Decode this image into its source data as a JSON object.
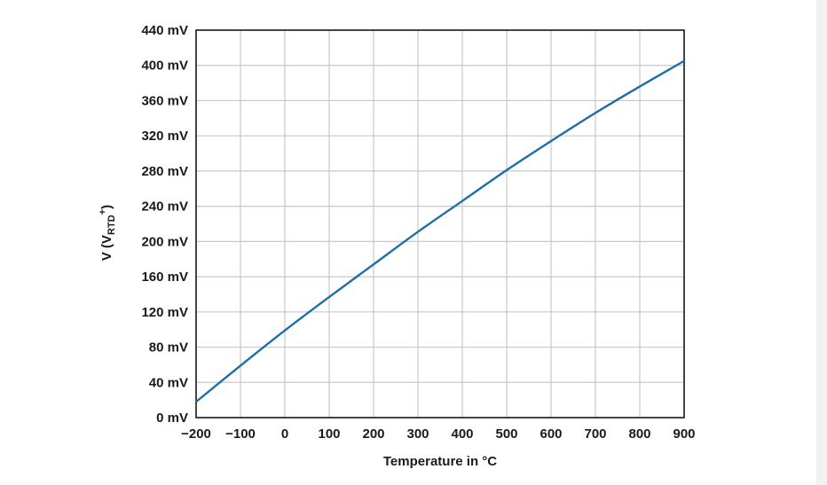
{
  "chart_data": {
    "type": "line",
    "title": "",
    "xlabel": "Temperature in °C",
    "ylabel": {
      "prefix": "V (V",
      "subscript": "RTD",
      "superscript": "+",
      "suffix": ")"
    },
    "xlim": [
      -200,
      900
    ],
    "ylim": [
      0,
      440
    ],
    "x_ticks": [
      {
        "value": -200,
        "label": "−200"
      },
      {
        "value": -100,
        "label": "−100"
      },
      {
        "value": 0,
        "label": "0"
      },
      {
        "value": 100,
        "label": "100"
      },
      {
        "value": 200,
        "label": "200"
      },
      {
        "value": 300,
        "label": "300"
      },
      {
        "value": 400,
        "label": "400"
      },
      {
        "value": 500,
        "label": "500"
      },
      {
        "value": 600,
        "label": "600"
      },
      {
        "value": 700,
        "label": "700"
      },
      {
        "value": 800,
        "label": "800"
      },
      {
        "value": 900,
        "label": "900"
      }
    ],
    "y_ticks": [
      {
        "value": 0,
        "label": "0 mV"
      },
      {
        "value": 40,
        "label": "40 mV"
      },
      {
        "value": 80,
        "label": "80 mV"
      },
      {
        "value": 120,
        "label": "120 mV"
      },
      {
        "value": 160,
        "label": "160 mV"
      },
      {
        "value": 200,
        "label": "200 mV"
      },
      {
        "value": 240,
        "label": "240 mV"
      },
      {
        "value": 280,
        "label": "280 mV"
      },
      {
        "value": 320,
        "label": "320 mV"
      },
      {
        "value": 360,
        "label": "360 mV"
      },
      {
        "value": 400,
        "label": "400 mV"
      },
      {
        "value": 440,
        "label": "440 mV"
      }
    ],
    "grid": true,
    "series": [
      {
        "color": "#1f6ea8",
        "points": [
          [
            -200,
            18
          ],
          [
            -100,
            59
          ],
          [
            0,
            99
          ],
          [
            100,
            137
          ],
          [
            200,
            174
          ],
          [
            300,
            211
          ],
          [
            400,
            246
          ],
          [
            500,
            281
          ],
          [
            600,
            314
          ],
          [
            700,
            346
          ],
          [
            800,
            376
          ],
          [
            900,
            405
          ]
        ]
      }
    ]
  }
}
